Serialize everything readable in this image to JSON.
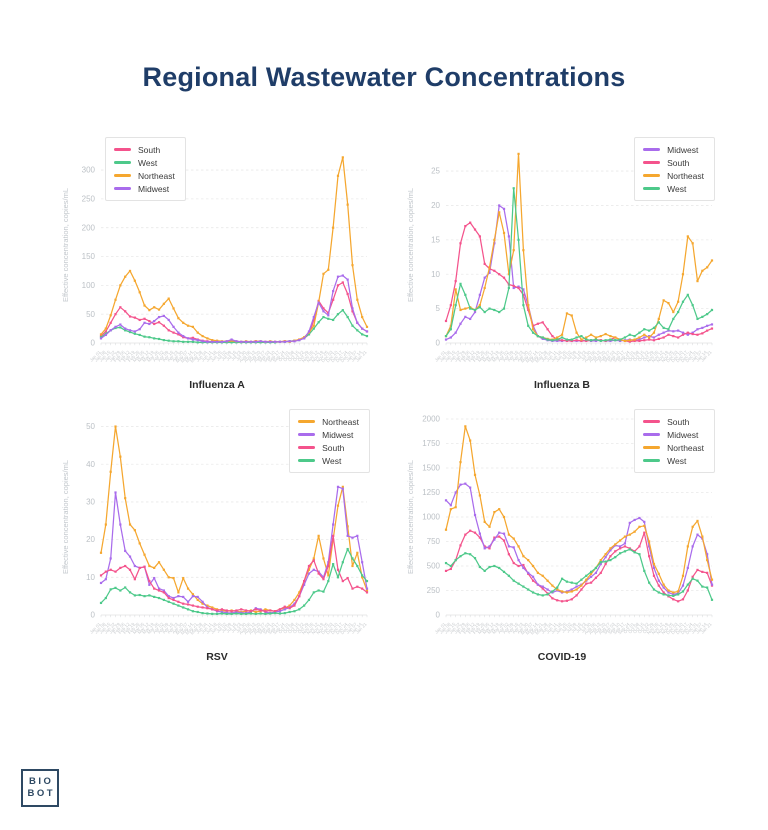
{
  "page": {
    "title": "Regional Wastewater Concentrations",
    "title_color": "#1F3D68",
    "background": "#FFFFFF"
  },
  "logo": {
    "line1": "BIO",
    "line2": "BOT"
  },
  "region_colors": {
    "South": "#F4538C",
    "West": "#4DC98A",
    "Northeast": "#F5A72F",
    "Midwest": "#A96CEC"
  },
  "axis": {
    "ylabel": "Effective concentration, copies/mL",
    "x_labels": [
      "Jan 01",
      "Jan 08",
      "Jan 15",
      "Jan 22",
      "Jan 29",
      "Feb 05",
      "Feb 12",
      "Feb 19",
      "Feb 26",
      "Mar 05",
      "Mar 12",
      "Mar 19",
      "Mar 26",
      "Apr 02",
      "Apr 09",
      "Apr 16",
      "Apr 23",
      "Apr 30",
      "May 07",
      "May 14",
      "May 21",
      "May 28",
      "Jun 04",
      "Jun 11",
      "Jun 18",
      "Jun 25",
      "Jul 02",
      "Jul 09",
      "Jul 16",
      "Jul 23",
      "Jul 30",
      "Aug 06",
      "Aug 13",
      "Aug 20",
      "Aug 27",
      "Sep 03",
      "Sep 10",
      "Sep 17",
      "Sep 24",
      "Oct 01",
      "Oct 08",
      "Oct 15",
      "Oct 22",
      "Oct 29",
      "Nov 05",
      "Nov 12",
      "Nov 19",
      "Nov 26",
      "Dec 03",
      "Dec 10",
      "Dec 17",
      "Dec 24",
      "Dec 31",
      "Jan 07",
      "Jan 14",
      "Jan 21"
    ]
  },
  "chart_data": [
    {
      "id": "influenza-a",
      "title": "Influenza A",
      "type": "line",
      "xlabel": "",
      "ylabel": "Effective concentration, copies/mL",
      "ylim": [
        0,
        340
      ],
      "yticks": [
        0,
        50,
        100,
        150,
        200,
        250,
        300
      ],
      "legend_position": "top-left",
      "legend": [
        "South",
        "West",
        "Northeast",
        "Midwest"
      ],
      "series": [
        {
          "name": "South",
          "values": [
            12,
            20,
            35,
            50,
            62,
            55,
            46,
            44,
            40,
            42,
            38,
            33,
            36,
            30,
            22,
            18,
            15,
            10,
            8,
            9,
            6,
            4,
            3,
            2,
            2,
            2,
            2,
            3,
            2,
            2,
            2,
            2,
            3,
            2,
            2,
            2,
            2,
            2,
            3,
            3,
            4,
            6,
            8,
            15,
            40,
            73,
            60,
            52,
            75,
            100,
            105,
            85,
            55,
            35,
            25,
            20
          ]
        },
        {
          "name": "West",
          "values": [
            10,
            16,
            22,
            26,
            27,
            22,
            19,
            16,
            14,
            11,
            10,
            8,
            7,
            5,
            4,
            3,
            3,
            2,
            2,
            2,
            1,
            1,
            1,
            1,
            1,
            1,
            1,
            1,
            1,
            1,
            1,
            1,
            1,
            1,
            1,
            1,
            1,
            2,
            2,
            3,
            4,
            5,
            9,
            15,
            25,
            36,
            45,
            42,
            40,
            50,
            57,
            45,
            30,
            22,
            15,
            12
          ]
        },
        {
          "name": "Northeast",
          "values": [
            15,
            25,
            48,
            75,
            100,
            115,
            125,
            108,
            88,
            65,
            57,
            62,
            58,
            68,
            77,
            60,
            43,
            35,
            30,
            28,
            18,
            12,
            8,
            5,
            4,
            3,
            3,
            4,
            3,
            2,
            3,
            2,
            3,
            3,
            2,
            3,
            2,
            2,
            3,
            2,
            4,
            6,
            10,
            18,
            30,
            70,
            120,
            127,
            200,
            290,
            322,
            240,
            135,
            75,
            45,
            28
          ]
        },
        {
          "name": "Midwest",
          "values": [
            8,
            14,
            22,
            28,
            32,
            25,
            22,
            20,
            24,
            35,
            33,
            38,
            45,
            47,
            40,
            28,
            18,
            12,
            8,
            6,
            5,
            3,
            2,
            2,
            2,
            2,
            3,
            6,
            3,
            2,
            2,
            2,
            2,
            3,
            2,
            2,
            2,
            2,
            2,
            3,
            3,
            5,
            8,
            20,
            45,
            70,
            55,
            48,
            90,
            115,
            117,
            110,
            60,
            35,
            25,
            20
          ]
        }
      ]
    },
    {
      "id": "influenza-b",
      "title": "Influenza B",
      "type": "line",
      "xlabel": "",
      "ylabel": "Effective concentration, copies/mL",
      "ylim": [
        0,
        28.5
      ],
      "yticks": [
        0,
        5,
        10,
        15,
        20,
        25
      ],
      "legend_position": "top-right",
      "legend": [
        "Midwest",
        "South",
        "Northeast",
        "West"
      ],
      "series": [
        {
          "name": "Midwest",
          "values": [
            0.5,
            0.8,
            1.5,
            2.8,
            3.8,
            3.5,
            4.5,
            7,
            9.5,
            10.2,
            14.5,
            20,
            19.5,
            15.5,
            8,
            8.2,
            7.8,
            5.5,
            2.5,
            1,
            0.6,
            0.4,
            0.3,
            0.3,
            0.3,
            0.4,
            0.3,
            0.3,
            0.3,
            0.4,
            0.3,
            0.3,
            0.4,
            0.3,
            0.3,
            0.4,
            0.3,
            0.4,
            0.5,
            0.4,
            0.5,
            0.8,
            1,
            0.8,
            1.2,
            1.5,
            1.8,
            1.7,
            1.8,
            1.5,
            1.2,
            1.5,
            2,
            2.2,
            2.5,
            2.7
          ]
        },
        {
          "name": "South",
          "values": [
            3.2,
            5.5,
            9,
            14.5,
            17,
            17.5,
            16.5,
            15.5,
            11.5,
            10.8,
            10.5,
            10,
            9.5,
            8.5,
            8.3,
            8,
            7,
            4.8,
            2.5,
            2.8,
            3,
            2,
            1,
            0.5,
            0.4,
            0.3,
            0.3,
            0.4,
            0.3,
            0.3,
            0.4,
            0.5,
            0.4,
            0.3,
            0.5,
            0.8,
            0.5,
            0.3,
            0.2,
            0.3,
            0.3,
            0.4,
            0.5,
            0.4,
            0.6,
            0.8,
            1.2,
            1,
            0.8,
            1.2,
            1.5,
            1.3,
            1.2,
            1.4,
            1.8,
            2.1
          ]
        },
        {
          "name": "Northeast",
          "values": [
            1,
            2.5,
            7.8,
            4.8,
            5,
            5.2,
            4.8,
            5.5,
            8,
            11,
            15,
            19,
            16,
            10,
            13.5,
            27.5,
            13.5,
            5.5,
            2,
            1,
            0.8,
            0.6,
            0.5,
            0.8,
            1.2,
            4.3,
            4,
            1.5,
            0.5,
            0.8,
            1.2,
            0.8,
            1,
            1.3,
            1,
            0.8,
            0.5,
            0.3,
            0.4,
            0.5,
            0.8,
            1.2,
            0.8,
            1.5,
            3.5,
            6.2,
            5.8,
            4.5,
            6,
            10,
            15.5,
            14.5,
            9,
            10.5,
            11,
            12
          ]
        },
        {
          "name": "West",
          "values": [
            1,
            2,
            5.5,
            8.6,
            7,
            5,
            4.8,
            5.2,
            4.5,
            5,
            4.8,
            4.5,
            5,
            8,
            22.5,
            15,
            5.5,
            2.5,
            1.5,
            1,
            0.8,
            0.5,
            0.4,
            0.5,
            0.8,
            0.5,
            0.5,
            0.8,
            1,
            0.5,
            0.4,
            0.5,
            0.3,
            0.4,
            0.5,
            0.4,
            0.5,
            0.8,
            1.2,
            1,
            1.5,
            2,
            1.8,
            2.2,
            3,
            2.2,
            2,
            3.5,
            4.5,
            6,
            7,
            5.5,
            3.5,
            3.8,
            4.2,
            4.8
          ]
        }
      ]
    },
    {
      "id": "rsv",
      "title": "RSV",
      "type": "line",
      "xlabel": "",
      "ylabel": "Effective concentration, copies/mL",
      "ylim": [
        0,
        52
      ],
      "yticks": [
        0,
        10,
        20,
        30,
        40,
        50
      ],
      "legend_position": "top-right",
      "legend": [
        "Northeast",
        "Midwest",
        "South",
        "West"
      ],
      "series": [
        {
          "name": "Northeast",
          "values": [
            16.5,
            24,
            38,
            50,
            42,
            31,
            24,
            22.5,
            19,
            16,
            13,
            12.5,
            14,
            12,
            10,
            9.8,
            6,
            9.8,
            7,
            5.5,
            4,
            3,
            2.5,
            2,
            1.5,
            1.2,
            1,
            1.2,
            1,
            0.8,
            1,
            1.2,
            0.8,
            1,
            1.5,
            1.2,
            1,
            1.5,
            1.8,
            2.5,
            4,
            6,
            9,
            12,
            15,
            21,
            15,
            10.5,
            20,
            29,
            34,
            23.5,
            13,
            16.5,
            10,
            6.5
          ]
        },
        {
          "name": "Midwest",
          "values": [
            8.5,
            9.5,
            15,
            32.5,
            24,
            17,
            15.5,
            13,
            12.5,
            12.8,
            8,
            9.8,
            7,
            6.5,
            5,
            4.5,
            5,
            4.8,
            3.5,
            5,
            4.8,
            3.5,
            2,
            1.5,
            1,
            0.8,
            0.6,
            0.5,
            0.8,
            0.6,
            0.5,
            0.8,
            1.8,
            1.5,
            0.8,
            0.5,
            0.8,
            1,
            1.5,
            2,
            3,
            5,
            8,
            11,
            12,
            11.5,
            10,
            14,
            24,
            34,
            33.5,
            21,
            20.5,
            21,
            14,
            7
          ]
        },
        {
          "name": "South",
          "values": [
            10.5,
            11.5,
            12,
            11.5,
            12.5,
            13,
            12,
            9.5,
            12.5,
            12.8,
            9,
            7,
            6.5,
            6,
            4.5,
            4,
            3.5,
            3,
            2.8,
            2.5,
            2.2,
            2,
            1.8,
            1.5,
            1.2,
            1.5,
            1.2,
            1,
            1.2,
            1.5,
            1.2,
            1,
            1.5,
            1.2,
            1,
            1.2,
            1,
            1.5,
            2.2,
            1.8,
            2.5,
            5,
            9,
            13,
            14.5,
            11,
            9.5,
            13,
            21,
            12,
            9,
            9.8,
            7,
            7.5,
            7,
            6
          ]
        },
        {
          "name": "West",
          "values": [
            3.2,
            4.5,
            6.8,
            7.2,
            6.5,
            7.3,
            6,
            5.2,
            5.3,
            5,
            5.2,
            4.8,
            4.5,
            4,
            3.5,
            3,
            2.5,
            2,
            1.5,
            1,
            0.8,
            0.5,
            0.4,
            0.3,
            0.3,
            0.4,
            0.3,
            0.3,
            0.4,
            0.3,
            0.3,
            0.4,
            0.3,
            0.4,
            0.3,
            0.4,
            0.5,
            0.4,
            0.5,
            0.8,
            1,
            1.5,
            2.5,
            4,
            6,
            6.5,
            6.2,
            9,
            13.5,
            10,
            14,
            17.5,
            15,
            13,
            10.5,
            9
          ]
        }
      ]
    },
    {
      "id": "covid-19",
      "title": "COVID-19",
      "type": "line",
      "xlabel": "",
      "ylabel": "Effective concentration, copies/mL",
      "ylim": [
        0,
        2000
      ],
      "yticks": [
        0,
        250,
        500,
        750,
        1000,
        1250,
        1500,
        1750,
        2000
      ],
      "legend_position": "top-right",
      "legend": [
        "South",
        "Midwest",
        "Northeast",
        "West"
      ],
      "series": [
        {
          "name": "South",
          "values": [
            450,
            470,
            560,
            710,
            820,
            860,
            840,
            790,
            700,
            680,
            790,
            800,
            760,
            620,
            530,
            500,
            510,
            420,
            350,
            310,
            270,
            220,
            170,
            150,
            140,
            145,
            160,
            200,
            260,
            320,
            330,
            380,
            430,
            520,
            600,
            650,
            680,
            700,
            680,
            650,
            700,
            840,
            600,
            400,
            300,
            230,
            190,
            160,
            140,
            160,
            250,
            390,
            460,
            440,
            430,
            300
          ]
        },
        {
          "name": "Midwest",
          "values": [
            1170,
            1120,
            1250,
            1330,
            1340,
            1300,
            1020,
            830,
            680,
            700,
            770,
            840,
            830,
            700,
            690,
            560,
            480,
            430,
            390,
            310,
            290,
            260,
            230,
            250,
            230,
            240,
            260,
            290,
            310,
            350,
            390,
            430,
            520,
            590,
            660,
            710,
            700,
            730,
            940,
            970,
            990,
            950,
            700,
            480,
            350,
            280,
            230,
            210,
            220,
            300,
            480,
            700,
            820,
            780,
            620,
            310
          ]
        },
        {
          "name": "Northeast",
          "values": [
            870,
            1080,
            1100,
            1560,
            1925,
            1780,
            1430,
            1220,
            950,
            900,
            1050,
            1080,
            1000,
            820,
            780,
            700,
            600,
            560,
            500,
            430,
            400,
            350,
            300,
            260,
            240,
            230,
            240,
            260,
            300,
            360,
            420,
            480,
            560,
            620,
            680,
            720,
            760,
            800,
            820,
            850,
            900,
            910,
            750,
            520,
            420,
            310,
            250,
            230,
            240,
            400,
            700,
            900,
            960,
            800,
            560,
            360
          ]
        },
        {
          "name": "West",
          "values": [
            530,
            500,
            560,
            600,
            630,
            620,
            580,
            490,
            450,
            490,
            500,
            480,
            440,
            400,
            350,
            320,
            290,
            260,
            230,
            210,
            200,
            210,
            240,
            280,
            370,
            340,
            330,
            320,
            360,
            400,
            440,
            480,
            540,
            545,
            560,
            590,
            630,
            650,
            670,
            640,
            620,
            450,
            330,
            260,
            230,
            210,
            200,
            195,
            210,
            240,
            310,
            370,
            350,
            290,
            280,
            155
          ]
        }
      ]
    }
  ]
}
